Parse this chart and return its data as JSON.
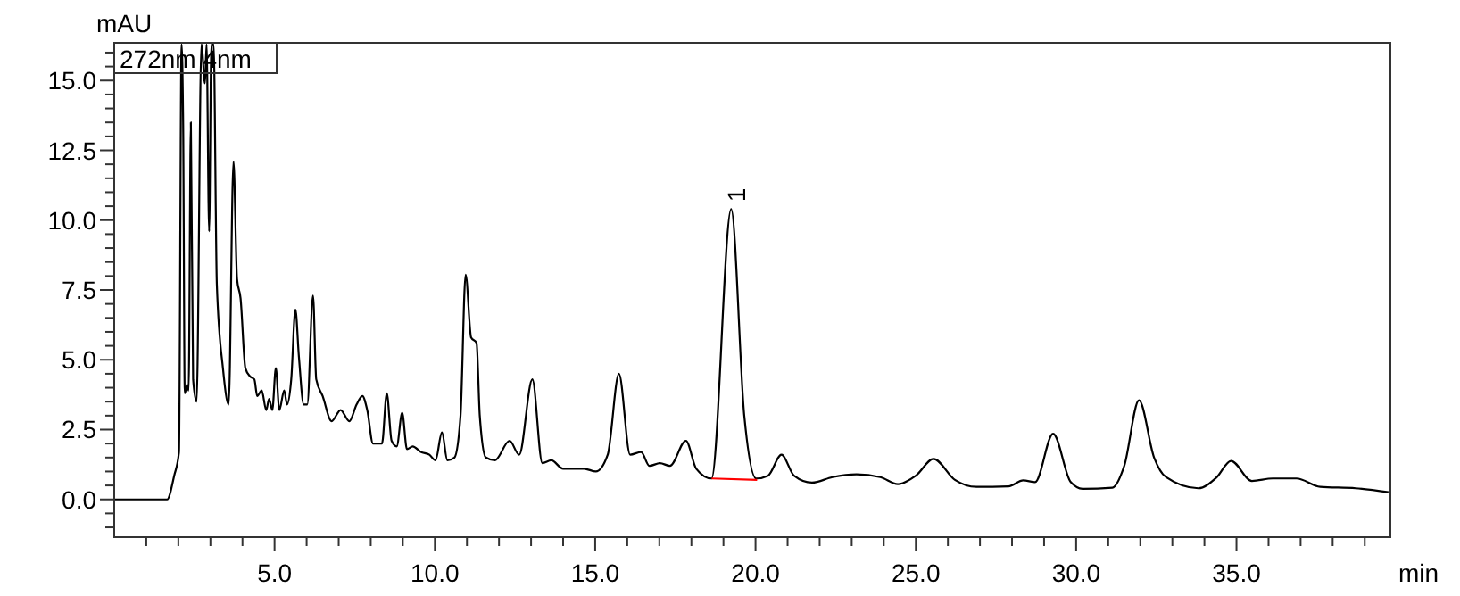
{
  "chart_data": {
    "type": "line",
    "xlabel": "min",
    "ylabel": "mAU",
    "xlim": [
      0,
      39.8
    ],
    "ylim": [
      -1.35,
      16.35
    ],
    "xticks": [
      {
        "value": 1,
        "label": null
      },
      {
        "value": 2,
        "label": null
      },
      {
        "value": 3,
        "label": null
      },
      {
        "value": 4,
        "label": null
      },
      {
        "value": 5,
        "label": "5.0"
      },
      {
        "value": 6,
        "label": null
      },
      {
        "value": 7,
        "label": null
      },
      {
        "value": 8,
        "label": null
      },
      {
        "value": 9,
        "label": null
      },
      {
        "value": 10,
        "label": "10.0"
      },
      {
        "value": 11,
        "label": null
      },
      {
        "value": 12,
        "label": null
      },
      {
        "value": 13,
        "label": null
      },
      {
        "value": 14,
        "label": null
      },
      {
        "value": 15,
        "label": "15.0"
      },
      {
        "value": 16,
        "label": null
      },
      {
        "value": 17,
        "label": null
      },
      {
        "value": 18,
        "label": null
      },
      {
        "value": 19,
        "label": null
      },
      {
        "value": 20,
        "label": "20.0"
      },
      {
        "value": 21,
        "label": null
      },
      {
        "value": 22,
        "label": null
      },
      {
        "value": 23,
        "label": null
      },
      {
        "value": 24,
        "label": null
      },
      {
        "value": 25,
        "label": "25.0"
      },
      {
        "value": 26,
        "label": null
      },
      {
        "value": 27,
        "label": null
      },
      {
        "value": 28,
        "label": null
      },
      {
        "value": 29,
        "label": null
      },
      {
        "value": 30,
        "label": "30.0"
      },
      {
        "value": 31,
        "label": null
      },
      {
        "value": 32,
        "label": null
      },
      {
        "value": 33,
        "label": null
      },
      {
        "value": 34,
        "label": null
      },
      {
        "value": 35,
        "label": "35.0"
      },
      {
        "value": 36,
        "label": null
      },
      {
        "value": 37,
        "label": null
      },
      {
        "value": 38,
        "label": null
      },
      {
        "value": 39,
        "label": null
      }
    ],
    "yticks": [
      {
        "value": -1,
        "label": null
      },
      {
        "value": -0.5,
        "label": null
      },
      {
        "value": 0,
        "label": "0.0"
      },
      {
        "value": 0.5,
        "label": null
      },
      {
        "value": 1,
        "label": null
      },
      {
        "value": 1.5,
        "label": null
      },
      {
        "value": 2,
        "label": null
      },
      {
        "value": 2.5,
        "label": "2.5"
      },
      {
        "value": 3,
        "label": null
      },
      {
        "value": 3.5,
        "label": null
      },
      {
        "value": 4,
        "label": null
      },
      {
        "value": 4.5,
        "label": null
      },
      {
        "value": 5,
        "label": "5.0"
      },
      {
        "value": 5.5,
        "label": null
      },
      {
        "value": 6,
        "label": null
      },
      {
        "value": 6.5,
        "label": null
      },
      {
        "value": 7,
        "label": null
      },
      {
        "value": 7.5,
        "label": "7.5"
      },
      {
        "value": 8,
        "label": null
      },
      {
        "value": 8.5,
        "label": null
      },
      {
        "value": 9,
        "label": null
      },
      {
        "value": 9.5,
        "label": null
      },
      {
        "value": 10,
        "label": "10.0"
      },
      {
        "value": 10.5,
        "label": null
      },
      {
        "value": 11,
        "label": null
      },
      {
        "value": 11.5,
        "label": null
      },
      {
        "value": 12,
        "label": null
      },
      {
        "value": 12.5,
        "label": "12.5"
      },
      {
        "value": 13,
        "label": null
      },
      {
        "value": 13.5,
        "label": null
      },
      {
        "value": 14,
        "label": null
      },
      {
        "value": 14.5,
        "label": null
      },
      {
        "value": 15,
        "label": "15.0"
      },
      {
        "value": 15.5,
        "label": null
      },
      {
        "value": 16,
        "label": null
      }
    ],
    "grid": false,
    "line_style": "solid",
    "annotations": [
      "272nm 4nm",
      {
        "text": "1",
        "x": 19.24,
        "y": 10.4
      }
    ],
    "series": [
      {
        "color": "#000000",
        "x": [
          0,
          1.65,
          1.87,
          2.02,
          2.1,
          2.15,
          2.2,
          2.27,
          2.32,
          2.39,
          2.46,
          2.57,
          2.72,
          2.83,
          2.88,
          2.96,
          3.03,
          3.1,
          3.2,
          3.39,
          3.57,
          3.72,
          3.83,
          3.94,
          4.09,
          4.24,
          4.37,
          4.46,
          4.6,
          4.74,
          4.83,
          4.93,
          5.04,
          5.15,
          5.3,
          5.39,
          5.52,
          5.65,
          5.76,
          5.91,
          6.02,
          6.2,
          6.3,
          6.5,
          6.78,
          7.06,
          7.33,
          7.56,
          7.74,
          7.89,
          8.07,
          8.35,
          8.5,
          8.65,
          8.81,
          8.98,
          9.13,
          9.31,
          9.56,
          9.83,
          10.02,
          10.22,
          10.39,
          10.61,
          10.8,
          10.96,
          11.13,
          11.3,
          11.4,
          11.59,
          11.87,
          12.33,
          12.63,
          13.04,
          13.35,
          13.63,
          14,
          14.65,
          15.02,
          15.39,
          15.74,
          16.09,
          16.43,
          16.69,
          17.02,
          17.33,
          17.83,
          18.15,
          18.63,
          19.24,
          19.65,
          20.02,
          20.39,
          20.81,
          21.2,
          21.76,
          22.4,
          23.15,
          23.89,
          24.44,
          25,
          25.55,
          26.22,
          26.89,
          27.89,
          28.35,
          28.72,
          29.28,
          29.83,
          30.2,
          31.13,
          31.5,
          31.96,
          32.43,
          32.8,
          33.81,
          34.37,
          34.83,
          35.48,
          36.13,
          36.87,
          37.61,
          38.72,
          39.74
        ],
        "values": [
          0,
          0,
          0.85,
          1.7,
          16.3,
          13.4,
          3.8,
          4.1,
          3.9,
          13.5,
          4.3,
          3.5,
          16.3,
          14.9,
          16.3,
          9.6,
          16.3,
          16.3,
          7.7,
          4.7,
          3.4,
          12.1,
          7.9,
          7.2,
          4.7,
          4.4,
          4.3,
          3.7,
          3.9,
          3.2,
          3.6,
          3.2,
          4.7,
          3.2,
          3.9,
          3.4,
          4.3,
          6.8,
          5.1,
          3.4,
          3.4,
          7.3,
          4.3,
          3.7,
          2.8,
          3.2,
          2.8,
          3.4,
          3.7,
          3.2,
          2,
          2,
          3.8,
          2.1,
          1.9,
          3.1,
          1.8,
          1.9,
          1.7,
          1.6,
          1.4,
          2.4,
          1.4,
          1.5,
          3,
          8.05,
          5.8,
          5.6,
          3,
          1.5,
          1.4,
          2.1,
          1.6,
          4.3,
          1.3,
          1.4,
          1.1,
          1.1,
          1,
          1.6,
          4.5,
          1.6,
          1.7,
          1.2,
          1.3,
          1.2,
          2.1,
          1.1,
          0.75,
          10.4,
          2.98,
          0.75,
          0.85,
          1.6,
          0.85,
          0.6,
          0.8,
          0.9,
          0.8,
          0.55,
          0.85,
          1.45,
          0.7,
          0.45,
          0.47,
          0.68,
          0.62,
          2.35,
          0.62,
          0.38,
          0.42,
          1.2,
          3.55,
          1.5,
          0.8,
          0.4,
          0.78,
          1.38,
          0.66,
          0.75,
          0.75,
          0.45,
          0.4,
          0.26
        ]
      },
      {
        "color": "#ff0000",
        "x": [
          18.63,
          20.05
        ],
        "values": [
          0.75,
          0.7
        ]
      }
    ]
  }
}
